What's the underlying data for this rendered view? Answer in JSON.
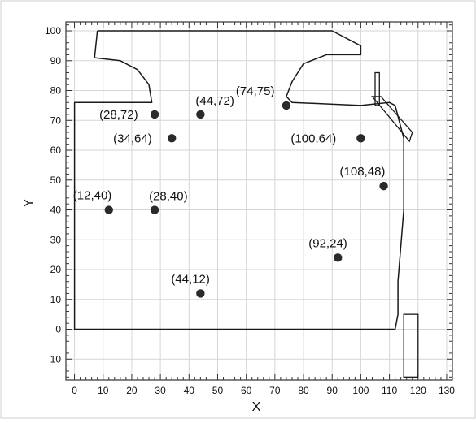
{
  "chart_data": {
    "type": "scatter",
    "title": "",
    "xlabel": "X",
    "ylabel": "Y",
    "xlim": [
      -3,
      132
    ],
    "ylim": [
      -17,
      103
    ],
    "x_ticks": [
      0,
      10,
      20,
      30,
      40,
      50,
      60,
      70,
      80,
      90,
      100,
      110,
      120,
      130
    ],
    "y_ticks": [
      -10,
      0,
      10,
      20,
      30,
      40,
      50,
      60,
      70,
      80,
      90,
      100
    ],
    "grid": true,
    "points": [
      {
        "label": "(28,72)",
        "x": 28,
        "y": 72
      },
      {
        "label": "(44,72)",
        "x": 44,
        "y": 72
      },
      {
        "label": "(74,75)",
        "x": 74,
        "y": 75
      },
      {
        "label": "(34,64)",
        "x": 34,
        "y": 64
      },
      {
        "label": "(100,64)",
        "x": 100,
        "y": 64
      },
      {
        "label": "(108,48)",
        "x": 108,
        "y": 48
      },
      {
        "label": "(12,40)",
        "x": 12,
        "y": 40
      },
      {
        "label": "(28,40)",
        "x": 28,
        "y": 40
      },
      {
        "label": "(92,24)",
        "x": 92,
        "y": 24
      },
      {
        "label": "(44,12)",
        "x": 44,
        "y": 12
      }
    ],
    "outline": [
      [
        8,
        100
      ],
      [
        90,
        100
      ],
      [
        100,
        95
      ],
      [
        100,
        92
      ],
      [
        88,
        92
      ],
      [
        80,
        89
      ],
      [
        76,
        83
      ],
      [
        74,
        78
      ],
      [
        76,
        76
      ],
      [
        100,
        75
      ],
      [
        110,
        76
      ],
      [
        112,
        75
      ],
      [
        115,
        64
      ],
      [
        115,
        40
      ],
      [
        113,
        16
      ],
      [
        113,
        5
      ],
      [
        112,
        0
      ],
      [
        0,
        0
      ],
      [
        0,
        76
      ],
      [
        27,
        76
      ],
      [
        26,
        82
      ],
      [
        22,
        87
      ],
      [
        16,
        90
      ],
      [
        7,
        91
      ],
      [
        8,
        100
      ]
    ],
    "marker_color": "#2a2a2a",
    "line_color": "#1a1a1a",
    "grid_color": "#d6d6d6"
  }
}
